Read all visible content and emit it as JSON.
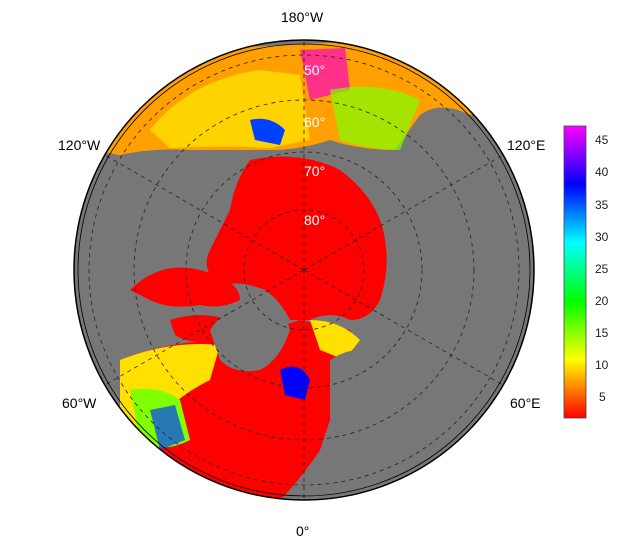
{
  "map": {
    "projection": "north-polar-stereographic",
    "longitude_labels": {
      "top": "180°W",
      "upper_left": "120°W",
      "upper_right": "120°E",
      "lower_left": "60°W",
      "lower_right": "60°E",
      "bottom": "0°"
    },
    "latitude_labels": [
      "50°",
      "60°",
      "70°",
      "80°"
    ],
    "colors": {
      "land": "#777777",
      "ocean_max_value": "#ff0000",
      "background": "#ffffff",
      "grid": "#222222"
    }
  },
  "colorbar": {
    "ticks": [
      "45",
      "40",
      "35",
      "30",
      "25",
      "20",
      "15",
      "10",
      "5"
    ],
    "min": 1,
    "max": 48,
    "gradient": [
      "#ff0000",
      "#ff7f00",
      "#ffff00",
      "#7fff00",
      "#00ff00",
      "#00ff7f",
      "#00ffff",
      "#007fff",
      "#0000ff",
      "#7f00ff",
      "#ff00ff"
    ]
  }
}
